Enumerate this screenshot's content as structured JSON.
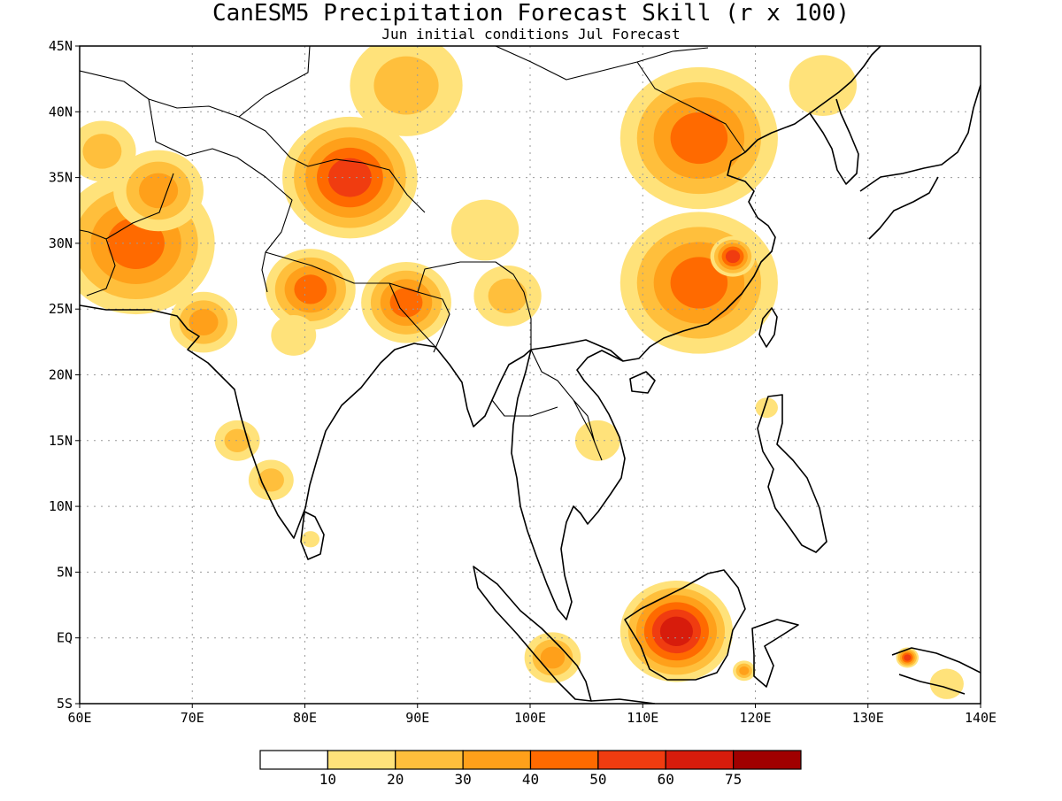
{
  "title": "CanESM5 Precipitation Forecast Skill (r x 100)",
  "subtitle": "Jun initial conditions  Jul Forecast",
  "map": {
    "lon_range": [
      60,
      140
    ],
    "lat_range": [
      -5,
      45
    ],
    "lon_ticks": [
      {
        "value": 60,
        "label": "60E"
      },
      {
        "value": 70,
        "label": "70E"
      },
      {
        "value": 80,
        "label": "80E"
      },
      {
        "value": 90,
        "label": "90E"
      },
      {
        "value": 100,
        "label": "100E"
      },
      {
        "value": 110,
        "label": "110E"
      },
      {
        "value": 120,
        "label": "120E"
      },
      {
        "value": 130,
        "label": "130E"
      },
      {
        "value": 140,
        "label": "140E"
      }
    ],
    "lat_ticks": [
      {
        "value": 45,
        "label": "45N"
      },
      {
        "value": 40,
        "label": "40N"
      },
      {
        "value": 35,
        "label": "35N"
      },
      {
        "value": 30,
        "label": "30N"
      },
      {
        "value": 25,
        "label": "25N"
      },
      {
        "value": 20,
        "label": "20N"
      },
      {
        "value": 15,
        "label": "15N"
      },
      {
        "value": 10,
        "label": "10N"
      },
      {
        "value": 5,
        "label": "5N"
      },
      {
        "value": 0,
        "label": "EQ"
      },
      {
        "value": -5,
        "label": "5S"
      }
    ],
    "skill_regions": [
      {
        "name": "iran-pakistan",
        "lon": 65,
        "lat": 30,
        "r": 7,
        "value": 45
      },
      {
        "name": "iran-north",
        "lon": 62,
        "lat": 37,
        "r": 3,
        "value": 25
      },
      {
        "name": "afghanistan",
        "lon": 67,
        "lat": 34,
        "r": 4,
        "value": 30
      },
      {
        "name": "west-india",
        "lon": 71,
        "lat": 24,
        "r": 3,
        "value": 30
      },
      {
        "name": "india-west-coast",
        "lon": 74,
        "lat": 15,
        "r": 2,
        "value": 20
      },
      {
        "name": "south-india",
        "lon": 77,
        "lat": 12,
        "r": 2,
        "value": 25
      },
      {
        "name": "sri-lanka",
        "lon": 80.5,
        "lat": 7.5,
        "r": 0.8,
        "value": 15
      },
      {
        "name": "north-india",
        "lon": 80.5,
        "lat": 26.5,
        "r": 4,
        "value": 45
      },
      {
        "name": "central-india",
        "lon": 79,
        "lat": 23,
        "r": 2,
        "value": 15
      },
      {
        "name": "bengal",
        "lon": 89,
        "lat": 25.5,
        "r": 4,
        "value": 45
      },
      {
        "name": "tarim-basin",
        "lon": 84,
        "lat": 35,
        "r": 6,
        "value": 50
      },
      {
        "name": "mongolia-west",
        "lon": 89,
        "lat": 42,
        "r": 5,
        "value": 20
      },
      {
        "name": "tibet-east",
        "lon": 96,
        "lat": 31,
        "r": 3,
        "value": 15
      },
      {
        "name": "myanmar-north",
        "lon": 98,
        "lat": 26,
        "r": 3,
        "value": 20
      },
      {
        "name": "north-china",
        "lon": 115,
        "lat": 38,
        "r": 7,
        "value": 40
      },
      {
        "name": "manchuria",
        "lon": 126,
        "lat": 42,
        "r": 3,
        "value": 15
      },
      {
        "name": "south-china",
        "lon": 115,
        "lat": 27,
        "r": 7,
        "value": 45
      },
      {
        "name": "east-china-coast",
        "lon": 118,
        "lat": 29,
        "r": 2,
        "value": 50
      },
      {
        "name": "vietnam-laos",
        "lon": 106,
        "lat": 15,
        "r": 2,
        "value": 15
      },
      {
        "name": "sumatra",
        "lon": 102,
        "lat": -1.5,
        "r": 2.5,
        "value": 35
      },
      {
        "name": "borneo",
        "lon": 113,
        "lat": 0.5,
        "r": 5,
        "value": 60
      },
      {
        "name": "new-guinea-west",
        "lon": 133.5,
        "lat": -1.5,
        "r": 1,
        "value": 50
      },
      {
        "name": "new-guinea-south",
        "lon": 137,
        "lat": -3.5,
        "r": 1.5,
        "value": 15
      },
      {
        "name": "philippines",
        "lon": 121,
        "lat": 17.5,
        "r": 1,
        "value": 15
      },
      {
        "name": "sulawesi",
        "lon": 119,
        "lat": -2.5,
        "r": 1,
        "value": 30
      }
    ]
  },
  "colorbar": {
    "colors": [
      "#ffffff",
      "#ffe27a",
      "#ffbf3c",
      "#ffa01a",
      "#ff6a00",
      "#f03c10",
      "#d71c0c",
      "#a00000"
    ],
    "labels": [
      "10",
      "20",
      "30",
      "40",
      "50",
      "60",
      "75"
    ],
    "thresholds": [
      10,
      20,
      30,
      40,
      50,
      60,
      75
    ]
  }
}
